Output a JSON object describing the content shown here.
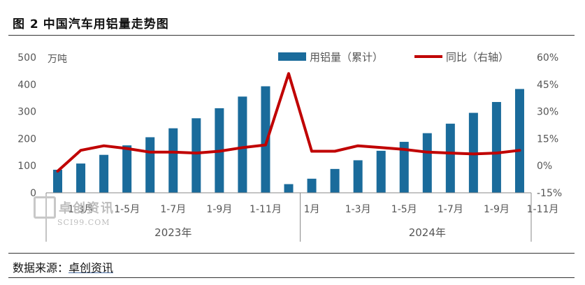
{
  "figure": {
    "number": "图 2",
    "title": "中国汽车用铝量走势图"
  },
  "source": {
    "label": "数据来源：",
    "name": "卓创资讯"
  },
  "watermark": {
    "cn": "卓创资讯",
    "en": "SCI99.COM"
  },
  "colors": {
    "bar": "#1a6b9b",
    "line": "#c00000",
    "axis": "#888888",
    "text": "#555555"
  },
  "chart_data": {
    "type": "bar",
    "left_axis": {
      "unit": "万吨",
      "min": 0,
      "max": 500,
      "ticks": [
        0,
        100,
        200,
        300,
        400,
        500
      ]
    },
    "right_axis": {
      "min": -15,
      "max": 60,
      "ticks": [
        "-15%",
        "0%",
        "15%",
        "30%",
        "45%",
        "60%"
      ],
      "tick_values": [
        -15,
        0,
        15,
        30,
        45,
        60
      ]
    },
    "legend": {
      "position": "top",
      "entries": [
        "用铝量（累计）",
        "同比（右轴）"
      ]
    },
    "x_tick_labels": [
      "1-3月",
      "1-5月",
      "1-7月",
      "1-9月",
      "1-11月",
      "1月",
      "1-3月",
      "1-5月",
      "1-7月",
      "1-9月",
      "1-11月"
    ],
    "x_tick_positions": [
      1,
      3,
      5,
      7,
      9,
      11,
      13,
      15,
      17,
      19,
      21
    ],
    "groups": [
      {
        "label": "2023年",
        "start": 0,
        "end": 10
      },
      {
        "label": "2024年",
        "start": 11,
        "end": 21
      }
    ],
    "series": [
      {
        "name": "用铝量（累计）",
        "axis": "left",
        "kind": "bar",
        "values": [
          85,
          108,
          140,
          175,
          205,
          238,
          275,
          312,
          355,
          393,
          32,
          52,
          88,
          120,
          155,
          188,
          220,
          255,
          295,
          335,
          383
        ]
      },
      {
        "name": "同比（右轴）",
        "axis": "right",
        "kind": "line",
        "values": [
          -3,
          8.5,
          11,
          9.5,
          7.5,
          7.5,
          7,
          8,
          10,
          11.5,
          51,
          8,
          8,
          11,
          10,
          9,
          7.5,
          7,
          6.5,
          7,
          8.5
        ]
      }
    ]
  }
}
